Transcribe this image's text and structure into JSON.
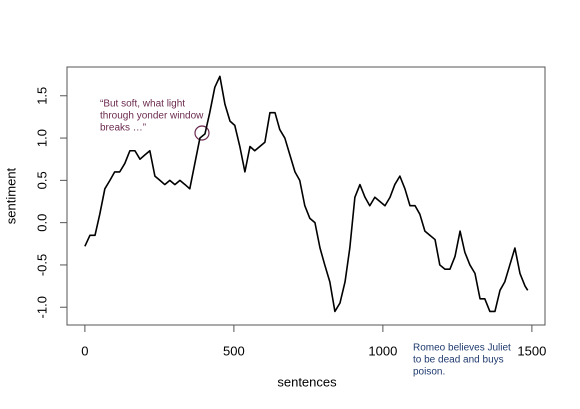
{
  "chart_data": {
    "type": "line",
    "x_label": "sentences",
    "y_label": "sentiment",
    "xlim": [
      -60,
      1544
    ],
    "ylim": [
      -1.21,
      1.84
    ],
    "xticks": [
      0,
      500,
      1000,
      1500
    ],
    "yticks": [
      -1.0,
      -0.5,
      0.0,
      0.5,
      1.0,
      1.5
    ],
    "ytick_labels": [
      "-1.0",
      "-0.5",
      "0.0",
      "0.5",
      "1.0",
      "1.5"
    ],
    "series": [
      {
        "color": "#000000",
        "x": [
          0,
          17,
          34,
          50,
          67,
          84,
          100,
          117,
          134,
          151,
          168,
          185,
          201,
          218,
          235,
          252,
          268,
          285,
          302,
          319,
          336,
          352,
          369,
          386,
          403,
          419,
          436,
          453,
          470,
          487,
          503,
          520,
          537,
          554,
          570,
          587,
          604,
          621,
          638,
          654,
          671,
          688,
          705,
          721,
          738,
          755,
          772,
          789,
          805,
          822,
          839,
          856,
          873,
          889,
          906,
          923,
          940,
          956,
          973,
          990,
          1007,
          1024,
          1040,
          1057,
          1074,
          1091,
          1108,
          1124,
          1141,
          1158,
          1175,
          1191,
          1208,
          1225,
          1242,
          1259,
          1275,
          1292,
          1309,
          1326,
          1342,
          1359,
          1376,
          1393,
          1409,
          1426,
          1443,
          1460,
          1477,
          1486
        ],
        "values": [
          -0.28,
          -0.15,
          -0.15,
          0.1,
          0.4,
          0.5,
          0.6,
          0.6,
          0.7,
          0.85,
          0.85,
          0.75,
          0.8,
          0.85,
          0.55,
          0.5,
          0.45,
          0.5,
          0.45,
          0.5,
          0.45,
          0.4,
          0.7,
          1.0,
          1.05,
          1.3,
          1.6,
          1.73,
          1.4,
          1.2,
          1.15,
          0.9,
          0.6,
          0.9,
          0.85,
          0.9,
          0.95,
          1.3,
          1.3,
          1.1,
          1.0,
          0.8,
          0.6,
          0.5,
          0.2,
          0.05,
          0.0,
          -0.3,
          -0.5,
          -0.7,
          -1.05,
          -0.95,
          -0.7,
          -0.3,
          0.3,
          0.45,
          0.3,
          0.2,
          0.3,
          0.25,
          0.2,
          0.3,
          0.45,
          0.55,
          0.4,
          0.2,
          0.2,
          0.1,
          -0.1,
          -0.15,
          -0.2,
          -0.5,
          -0.55,
          -0.55,
          -0.4,
          -0.1,
          -0.35,
          -0.5,
          -0.6,
          -0.9,
          -0.9,
          -1.05,
          -1.05,
          -0.8,
          -0.7,
          -0.5,
          -0.3,
          -0.6,
          -0.75,
          -0.8
        ]
      }
    ],
    "annotations": [
      {
        "color": "#6b2a4f",
        "lines": [
          "“But soft, what light",
          "through yonder window",
          "breaks …”"
        ]
      },
      {
        "color": "#1f3a6e",
        "lines": [
          "Romeo believes Juliet",
          "to be dead and buys",
          "poison."
        ]
      }
    ]
  }
}
